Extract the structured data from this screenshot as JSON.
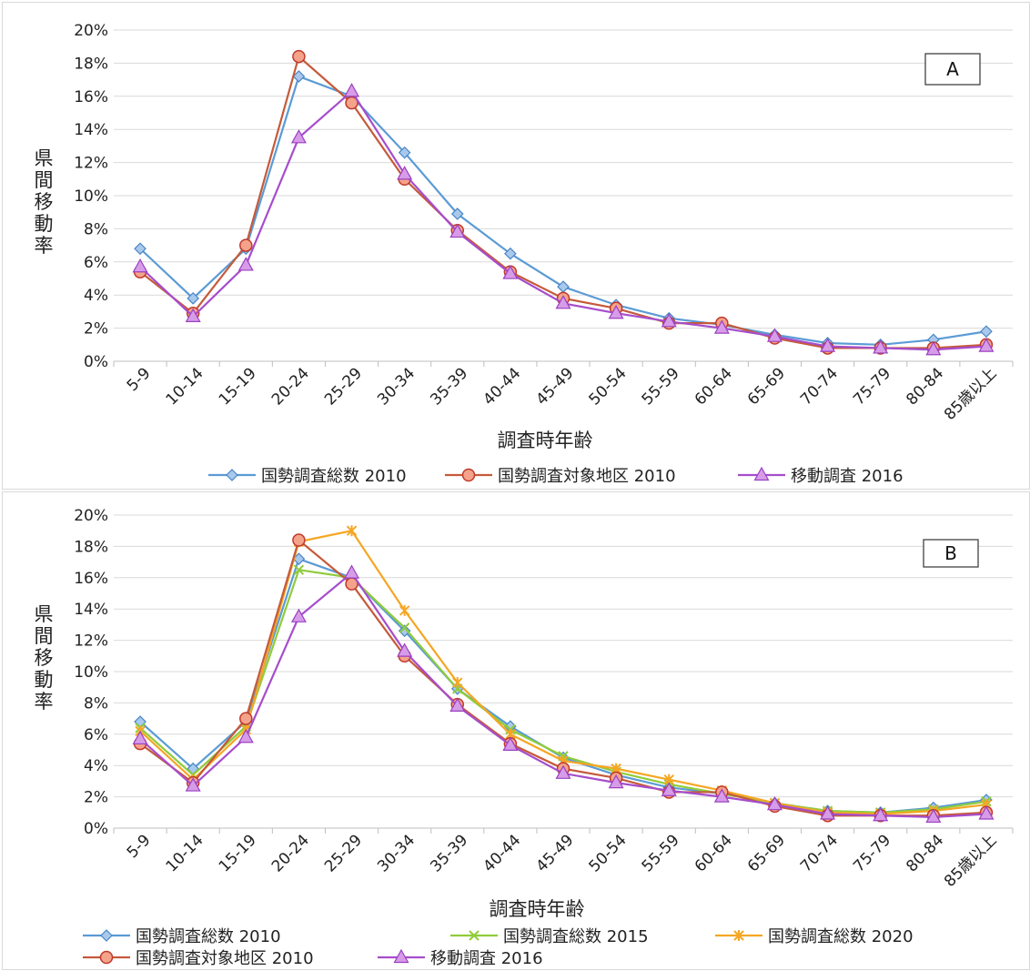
{
  "chart_data": [
    {
      "type": "line",
      "panel_label": "A",
      "ylabel": "県間移動率",
      "xlabel": "調査時年齢",
      "ylim": [
        0,
        0.2
      ],
      "yticks": [
        "0%",
        "2%",
        "4%",
        "6%",
        "8%",
        "10%",
        "12%",
        "14%",
        "16%",
        "18%",
        "20%"
      ],
      "grid": "horizontal",
      "legend": "bottom",
      "categories": [
        "5-9",
        "10-14",
        "15-19",
        "20-24",
        "25-29",
        "30-34",
        "35-39",
        "40-44",
        "45-49",
        "50-54",
        "55-59",
        "60-64",
        "65-69",
        "70-74",
        "75-79",
        "80-84",
        "85歳以上"
      ],
      "series": [
        {
          "name": "国勢調査総数 2010",
          "color": "#5b9bd5",
          "marker": "diamond",
          "values": [
            0.068,
            0.038,
            0.068,
            0.172,
            0.16,
            0.126,
            0.089,
            0.065,
            0.045,
            0.034,
            0.026,
            0.022,
            0.016,
            0.011,
            0.01,
            0.013,
            0.018
          ]
        },
        {
          "name": "国勢調査対象地区 2010",
          "color": "#c55a3a",
          "marker": "circle",
          "values": [
            0.054,
            0.029,
            0.07,
            0.184,
            0.156,
            0.11,
            0.079,
            0.054,
            0.038,
            0.032,
            0.023,
            0.023,
            0.014,
            0.008,
            0.008,
            0.008,
            0.01
          ]
        },
        {
          "name": "移動調査 2016",
          "color": "#a64dcc",
          "marker": "triangle",
          "values": [
            0.057,
            0.027,
            0.058,
            0.135,
            0.163,
            0.113,
            0.078,
            0.053,
            0.035,
            0.029,
            0.024,
            0.02,
            0.015,
            0.009,
            0.008,
            0.007,
            0.009
          ]
        }
      ]
    },
    {
      "type": "line",
      "panel_label": "B",
      "ylabel": "県間移動率",
      "xlabel": "調査時年齢",
      "ylim": [
        0,
        0.2
      ],
      "yticks": [
        "0%",
        "2%",
        "4%",
        "6%",
        "8%",
        "10%",
        "12%",
        "14%",
        "16%",
        "18%",
        "20%"
      ],
      "grid": "horizontal",
      "legend": "bottom",
      "categories": [
        "5-9",
        "10-14",
        "15-19",
        "20-24",
        "25-29",
        "30-34",
        "35-39",
        "40-44",
        "45-49",
        "50-54",
        "55-59",
        "60-64",
        "65-69",
        "70-74",
        "75-79",
        "80-84",
        "85歳以上"
      ],
      "series": [
        {
          "name": "国勢調査総数 2010",
          "color": "#5b9bd5",
          "marker": "diamond",
          "values": [
            0.068,
            0.038,
            0.068,
            0.172,
            0.16,
            0.126,
            0.089,
            0.065,
            0.045,
            0.034,
            0.026,
            0.022,
            0.016,
            0.011,
            0.01,
            0.013,
            0.018
          ]
        },
        {
          "name": "国勢調査総数 2015",
          "color": "#8fcc3a",
          "marker": "x",
          "values": [
            0.064,
            0.034,
            0.065,
            0.165,
            0.16,
            0.128,
            0.089,
            0.063,
            0.046,
            0.036,
            0.028,
            0.022,
            0.016,
            0.011,
            0.01,
            0.012,
            0.017
          ]
        },
        {
          "name": "国勢調査総数 2020",
          "color": "#f5a623",
          "marker": "star",
          "values": [
            0.062,
            0.031,
            0.063,
            0.183,
            0.19,
            0.139,
            0.093,
            0.06,
            0.043,
            0.038,
            0.031,
            0.024,
            0.016,
            0.01,
            0.009,
            0.011,
            0.015
          ]
        },
        {
          "name": "国勢調査対象地区 2010",
          "color": "#c55a3a",
          "marker": "circle",
          "values": [
            0.054,
            0.029,
            0.07,
            0.184,
            0.156,
            0.11,
            0.079,
            0.054,
            0.038,
            0.032,
            0.023,
            0.023,
            0.014,
            0.008,
            0.008,
            0.008,
            0.01
          ]
        },
        {
          "name": "移動調査 2016",
          "color": "#a64dcc",
          "marker": "triangle",
          "values": [
            0.057,
            0.027,
            0.058,
            0.135,
            0.163,
            0.113,
            0.078,
            0.053,
            0.035,
            0.029,
            0.024,
            0.02,
            0.015,
            0.009,
            0.008,
            0.007,
            0.009
          ]
        }
      ]
    }
  ]
}
